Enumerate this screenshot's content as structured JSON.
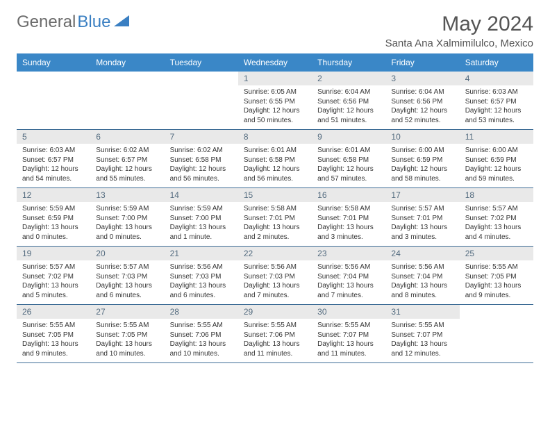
{
  "brand": {
    "word1": "General",
    "word2": "Blue",
    "word1_color": "#6b6b6b",
    "word2_color": "#3a7fc2"
  },
  "title": "May 2024",
  "location": "Santa Ana Xalmimilulco, Mexico",
  "colors": {
    "header_bg": "#3a87c7",
    "header_text": "#ffffff",
    "daynum_bg": "#e9e9e9",
    "daynum_text": "#536b7f",
    "week_border": "#3a6a94",
    "body_text": "#333333",
    "page_bg": "#ffffff"
  },
  "typography": {
    "title_fontsize": 30,
    "location_fontsize": 15,
    "dayheader_fontsize": 12,
    "daynum_fontsize": 12,
    "info_fontsize": 10
  },
  "layout": {
    "columns": 7,
    "rows": 5,
    "leading_blanks": 3
  },
  "day_names": [
    "Sunday",
    "Monday",
    "Tuesday",
    "Wednesday",
    "Thursday",
    "Friday",
    "Saturday"
  ],
  "days": [
    {
      "n": 1,
      "sunrise": "6:05 AM",
      "sunset": "6:55 PM",
      "dl1": "Daylight: 12 hours",
      "dl2": "and 50 minutes."
    },
    {
      "n": 2,
      "sunrise": "6:04 AM",
      "sunset": "6:56 PM",
      "dl1": "Daylight: 12 hours",
      "dl2": "and 51 minutes."
    },
    {
      "n": 3,
      "sunrise": "6:04 AM",
      "sunset": "6:56 PM",
      "dl1": "Daylight: 12 hours",
      "dl2": "and 52 minutes."
    },
    {
      "n": 4,
      "sunrise": "6:03 AM",
      "sunset": "6:57 PM",
      "dl1": "Daylight: 12 hours",
      "dl2": "and 53 minutes."
    },
    {
      "n": 5,
      "sunrise": "6:03 AM",
      "sunset": "6:57 PM",
      "dl1": "Daylight: 12 hours",
      "dl2": "and 54 minutes."
    },
    {
      "n": 6,
      "sunrise": "6:02 AM",
      "sunset": "6:57 PM",
      "dl1": "Daylight: 12 hours",
      "dl2": "and 55 minutes."
    },
    {
      "n": 7,
      "sunrise": "6:02 AM",
      "sunset": "6:58 PM",
      "dl1": "Daylight: 12 hours",
      "dl2": "and 56 minutes."
    },
    {
      "n": 8,
      "sunrise": "6:01 AM",
      "sunset": "6:58 PM",
      "dl1": "Daylight: 12 hours",
      "dl2": "and 56 minutes."
    },
    {
      "n": 9,
      "sunrise": "6:01 AM",
      "sunset": "6:58 PM",
      "dl1": "Daylight: 12 hours",
      "dl2": "and 57 minutes."
    },
    {
      "n": 10,
      "sunrise": "6:00 AM",
      "sunset": "6:59 PM",
      "dl1": "Daylight: 12 hours",
      "dl2": "and 58 minutes."
    },
    {
      "n": 11,
      "sunrise": "6:00 AM",
      "sunset": "6:59 PM",
      "dl1": "Daylight: 12 hours",
      "dl2": "and 59 minutes."
    },
    {
      "n": 12,
      "sunrise": "5:59 AM",
      "sunset": "6:59 PM",
      "dl1": "Daylight: 13 hours",
      "dl2": "and 0 minutes."
    },
    {
      "n": 13,
      "sunrise": "5:59 AM",
      "sunset": "7:00 PM",
      "dl1": "Daylight: 13 hours",
      "dl2": "and 0 minutes."
    },
    {
      "n": 14,
      "sunrise": "5:59 AM",
      "sunset": "7:00 PM",
      "dl1": "Daylight: 13 hours",
      "dl2": "and 1 minute."
    },
    {
      "n": 15,
      "sunrise": "5:58 AM",
      "sunset": "7:01 PM",
      "dl1": "Daylight: 13 hours",
      "dl2": "and 2 minutes."
    },
    {
      "n": 16,
      "sunrise": "5:58 AM",
      "sunset": "7:01 PM",
      "dl1": "Daylight: 13 hours",
      "dl2": "and 3 minutes."
    },
    {
      "n": 17,
      "sunrise": "5:57 AM",
      "sunset": "7:01 PM",
      "dl1": "Daylight: 13 hours",
      "dl2": "and 3 minutes."
    },
    {
      "n": 18,
      "sunrise": "5:57 AM",
      "sunset": "7:02 PM",
      "dl1": "Daylight: 13 hours",
      "dl2": "and 4 minutes."
    },
    {
      "n": 19,
      "sunrise": "5:57 AM",
      "sunset": "7:02 PM",
      "dl1": "Daylight: 13 hours",
      "dl2": "and 5 minutes."
    },
    {
      "n": 20,
      "sunrise": "5:57 AM",
      "sunset": "7:03 PM",
      "dl1": "Daylight: 13 hours",
      "dl2": "and 6 minutes."
    },
    {
      "n": 21,
      "sunrise": "5:56 AM",
      "sunset": "7:03 PM",
      "dl1": "Daylight: 13 hours",
      "dl2": "and 6 minutes."
    },
    {
      "n": 22,
      "sunrise": "5:56 AM",
      "sunset": "7:03 PM",
      "dl1": "Daylight: 13 hours",
      "dl2": "and 7 minutes."
    },
    {
      "n": 23,
      "sunrise": "5:56 AM",
      "sunset": "7:04 PM",
      "dl1": "Daylight: 13 hours",
      "dl2": "and 7 minutes."
    },
    {
      "n": 24,
      "sunrise": "5:56 AM",
      "sunset": "7:04 PM",
      "dl1": "Daylight: 13 hours",
      "dl2": "and 8 minutes."
    },
    {
      "n": 25,
      "sunrise": "5:55 AM",
      "sunset": "7:05 PM",
      "dl1": "Daylight: 13 hours",
      "dl2": "and 9 minutes."
    },
    {
      "n": 26,
      "sunrise": "5:55 AM",
      "sunset": "7:05 PM",
      "dl1": "Daylight: 13 hours",
      "dl2": "and 9 minutes."
    },
    {
      "n": 27,
      "sunrise": "5:55 AM",
      "sunset": "7:05 PM",
      "dl1": "Daylight: 13 hours",
      "dl2": "and 10 minutes."
    },
    {
      "n": 28,
      "sunrise": "5:55 AM",
      "sunset": "7:06 PM",
      "dl1": "Daylight: 13 hours",
      "dl2": "and 10 minutes."
    },
    {
      "n": 29,
      "sunrise": "5:55 AM",
      "sunset": "7:06 PM",
      "dl1": "Daylight: 13 hours",
      "dl2": "and 11 minutes."
    },
    {
      "n": 30,
      "sunrise": "5:55 AM",
      "sunset": "7:07 PM",
      "dl1": "Daylight: 13 hours",
      "dl2": "and 11 minutes."
    },
    {
      "n": 31,
      "sunrise": "5:55 AM",
      "sunset": "7:07 PM",
      "dl1": "Daylight: 13 hours",
      "dl2": "and 12 minutes."
    }
  ],
  "labels": {
    "sunrise_prefix": "Sunrise: ",
    "sunset_prefix": "Sunset: "
  }
}
